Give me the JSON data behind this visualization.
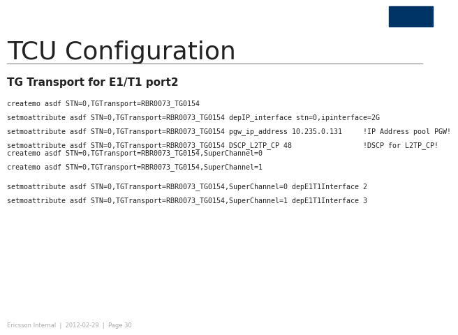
{
  "title": "TCU Configuration",
  "title_fontsize": 26,
  "title_color": "#222222",
  "bg_color": "#ffffff",
  "section_heading": "TG Transport for E1/T1 port2",
  "section_heading_fontsize": 11,
  "code_fontsize": 7.2,
  "code_color": "#222222",
  "footer_text": "Ericsson Internal  |  2012-02-29  |  Page 30",
  "footer_color": "#aaaaaa",
  "footer_fontsize": 6,
  "ericsson_box_color": "#003366",
  "code_lines_group1": [
    "createmo asdf STN=0,TGTransport=RBR0073_TG0154",
    "setmoattribute asdf STN=0,TGTransport=RBR0073_TG0154 depIP_interface stn=0,ipinterface=2G",
    "setmoattribute asdf STN=0,TGTransport=RBR0073_TG0154 pgw_ip_address 10.235.0.131     !IP Address pool PGW!",
    "setmoattribute asdf STN=0,TGTransport=RBR0073_TG0154 DSCP_L2TP_CP 48                 !DSCP for L2TP_CP!"
  ],
  "code_lines_group2": [
    "createmo asdf STN=0,TGTransport=RBR0073_TG0154,SuperChannel=0",
    "createmo asdf STN=0,TGTransport=RBR0073_TG0154,SuperChannel=1"
  ],
  "code_lines_group3": [
    "setmoattribute asdf STN=0,TGTransport=RBR0073_TG0154,SuperChannel=0 depE1T1Interface 2",
    "setmoattribute asdf STN=0,TGTransport=RBR0073_TG0154,SuperChannel=1 depE1T1Interface 3"
  ]
}
